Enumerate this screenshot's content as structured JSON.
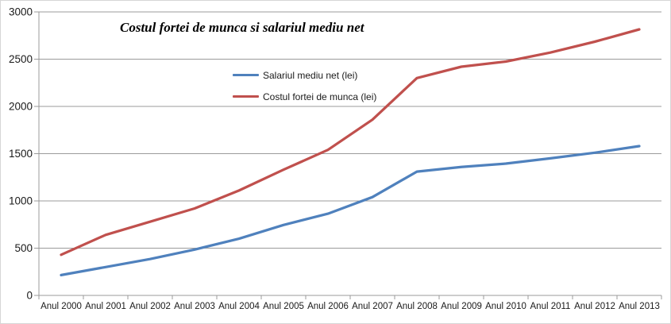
{
  "chart_data": {
    "type": "line",
    "title": "Costul fortei de munca si salariul mediu net",
    "categories": [
      "Anul 2000",
      "Anul 2001",
      "Anul 2002",
      "Anul 2003",
      "Anul 2004",
      "Anul 2005",
      "Anul 2006",
      "Anul 2007",
      "Anul 2008",
      "Anul 2009",
      "Anul 2010",
      "Anul 2011",
      "Anul 2012",
      "Anul 2013"
    ],
    "series": [
      {
        "name": "Salariul mediu net (lei)",
        "color": "#4F81BD",
        "values": [
          215,
          300,
          385,
          485,
          600,
          745,
          865,
          1040,
          1310,
          1360,
          1395,
          1450,
          1510,
          1580
        ]
      },
      {
        "name": "Costul fortei de munca (lei)",
        "color": "#C0504D",
        "values": [
          430,
          640,
          780,
          920,
          1110,
          1330,
          1540,
          1860,
          2300,
          2420,
          2475,
          2570,
          2685,
          2815
        ]
      }
    ],
    "xlabel": "",
    "ylabel": "",
    "ylim": [
      0,
      3000
    ],
    "yticks": [
      0,
      500,
      1000,
      1500,
      2000,
      2500,
      3000
    ],
    "grid": "horizontal",
    "legend_position": "inside-top-center",
    "axis_color": "#9b9b9b",
    "text_color": "#1a1a1a",
    "background_color": "#ffffff"
  }
}
